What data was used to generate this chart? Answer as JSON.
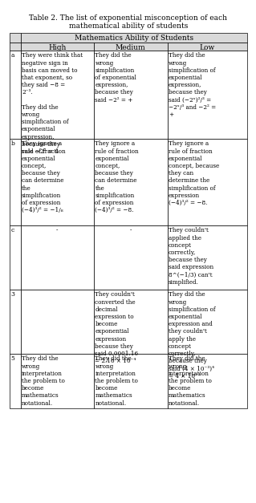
{
  "title": "Table 2. The list of exponential misconception of each\nmathematical ability of students",
  "col_header_main": "Mathematics Ability of Students",
  "col_headers": [
    "",
    "High",
    "Medium",
    "Low"
  ],
  "row_labels": [
    "a",
    "b",
    "c",
    "3",
    "5"
  ],
  "cells": [
    [
      "They were think that negative sign in basis can moved to that exponent, so they said −8 =\n2⁻³.\n\nThey did the wrong simplification of exponential expression, because they said −2² = 4",
      "They did the wrong simplification of exponential expression, because they said −2² = +",
      "They did the wrong simplification of exponential expression, because they said (−2ˣ)²/³ =\n−2ˣ/³ and −2² =\n+"
    ],
    [
      "They ignore a rule of fraction exponential concept, because they can determine the simplification of expression (−4)³/² = −1/₈",
      "They ignore a rule of fraction exponential concept, because they can determine the simplification of expression (−4)³/² = −8.",
      "They ignore a rule of fraction exponential concept, because they can determine the simplification of expression (−4)³/² = −8.\n\nThey couldn't applied the concept correctly, because they said expression 8^(−1/3) simplified."
    ],
    [
      "-",
      "-",
      "They couldn't applied the concept correctly, because they said expression 8^(−1/3) simplified."
    ],
    [
      "",
      "They couldn't converted the decimal expression to become exponential expression they said 0.0001.16 = 2.16 × 10⁻´",
      "They did the wrong simplification of exponential expression and they couldn't apply the concept correctly, because they said (4 × 10⁻³)´ = 4 × 10⁻¹"
    ],
    [
      "They did the wrong interpretation the problem to become mathematics notational.",
      "They did the wrong interpretation the problem to become mathematics notational.",
      "They did the wrong interpretation the problem to become mathematics notational."
    ]
  ],
  "bg_color": "#ffffff",
  "header_bg": "#d9d9d9",
  "border_color": "#000000",
  "font_size": 5.5,
  "title_font_size": 6.5
}
